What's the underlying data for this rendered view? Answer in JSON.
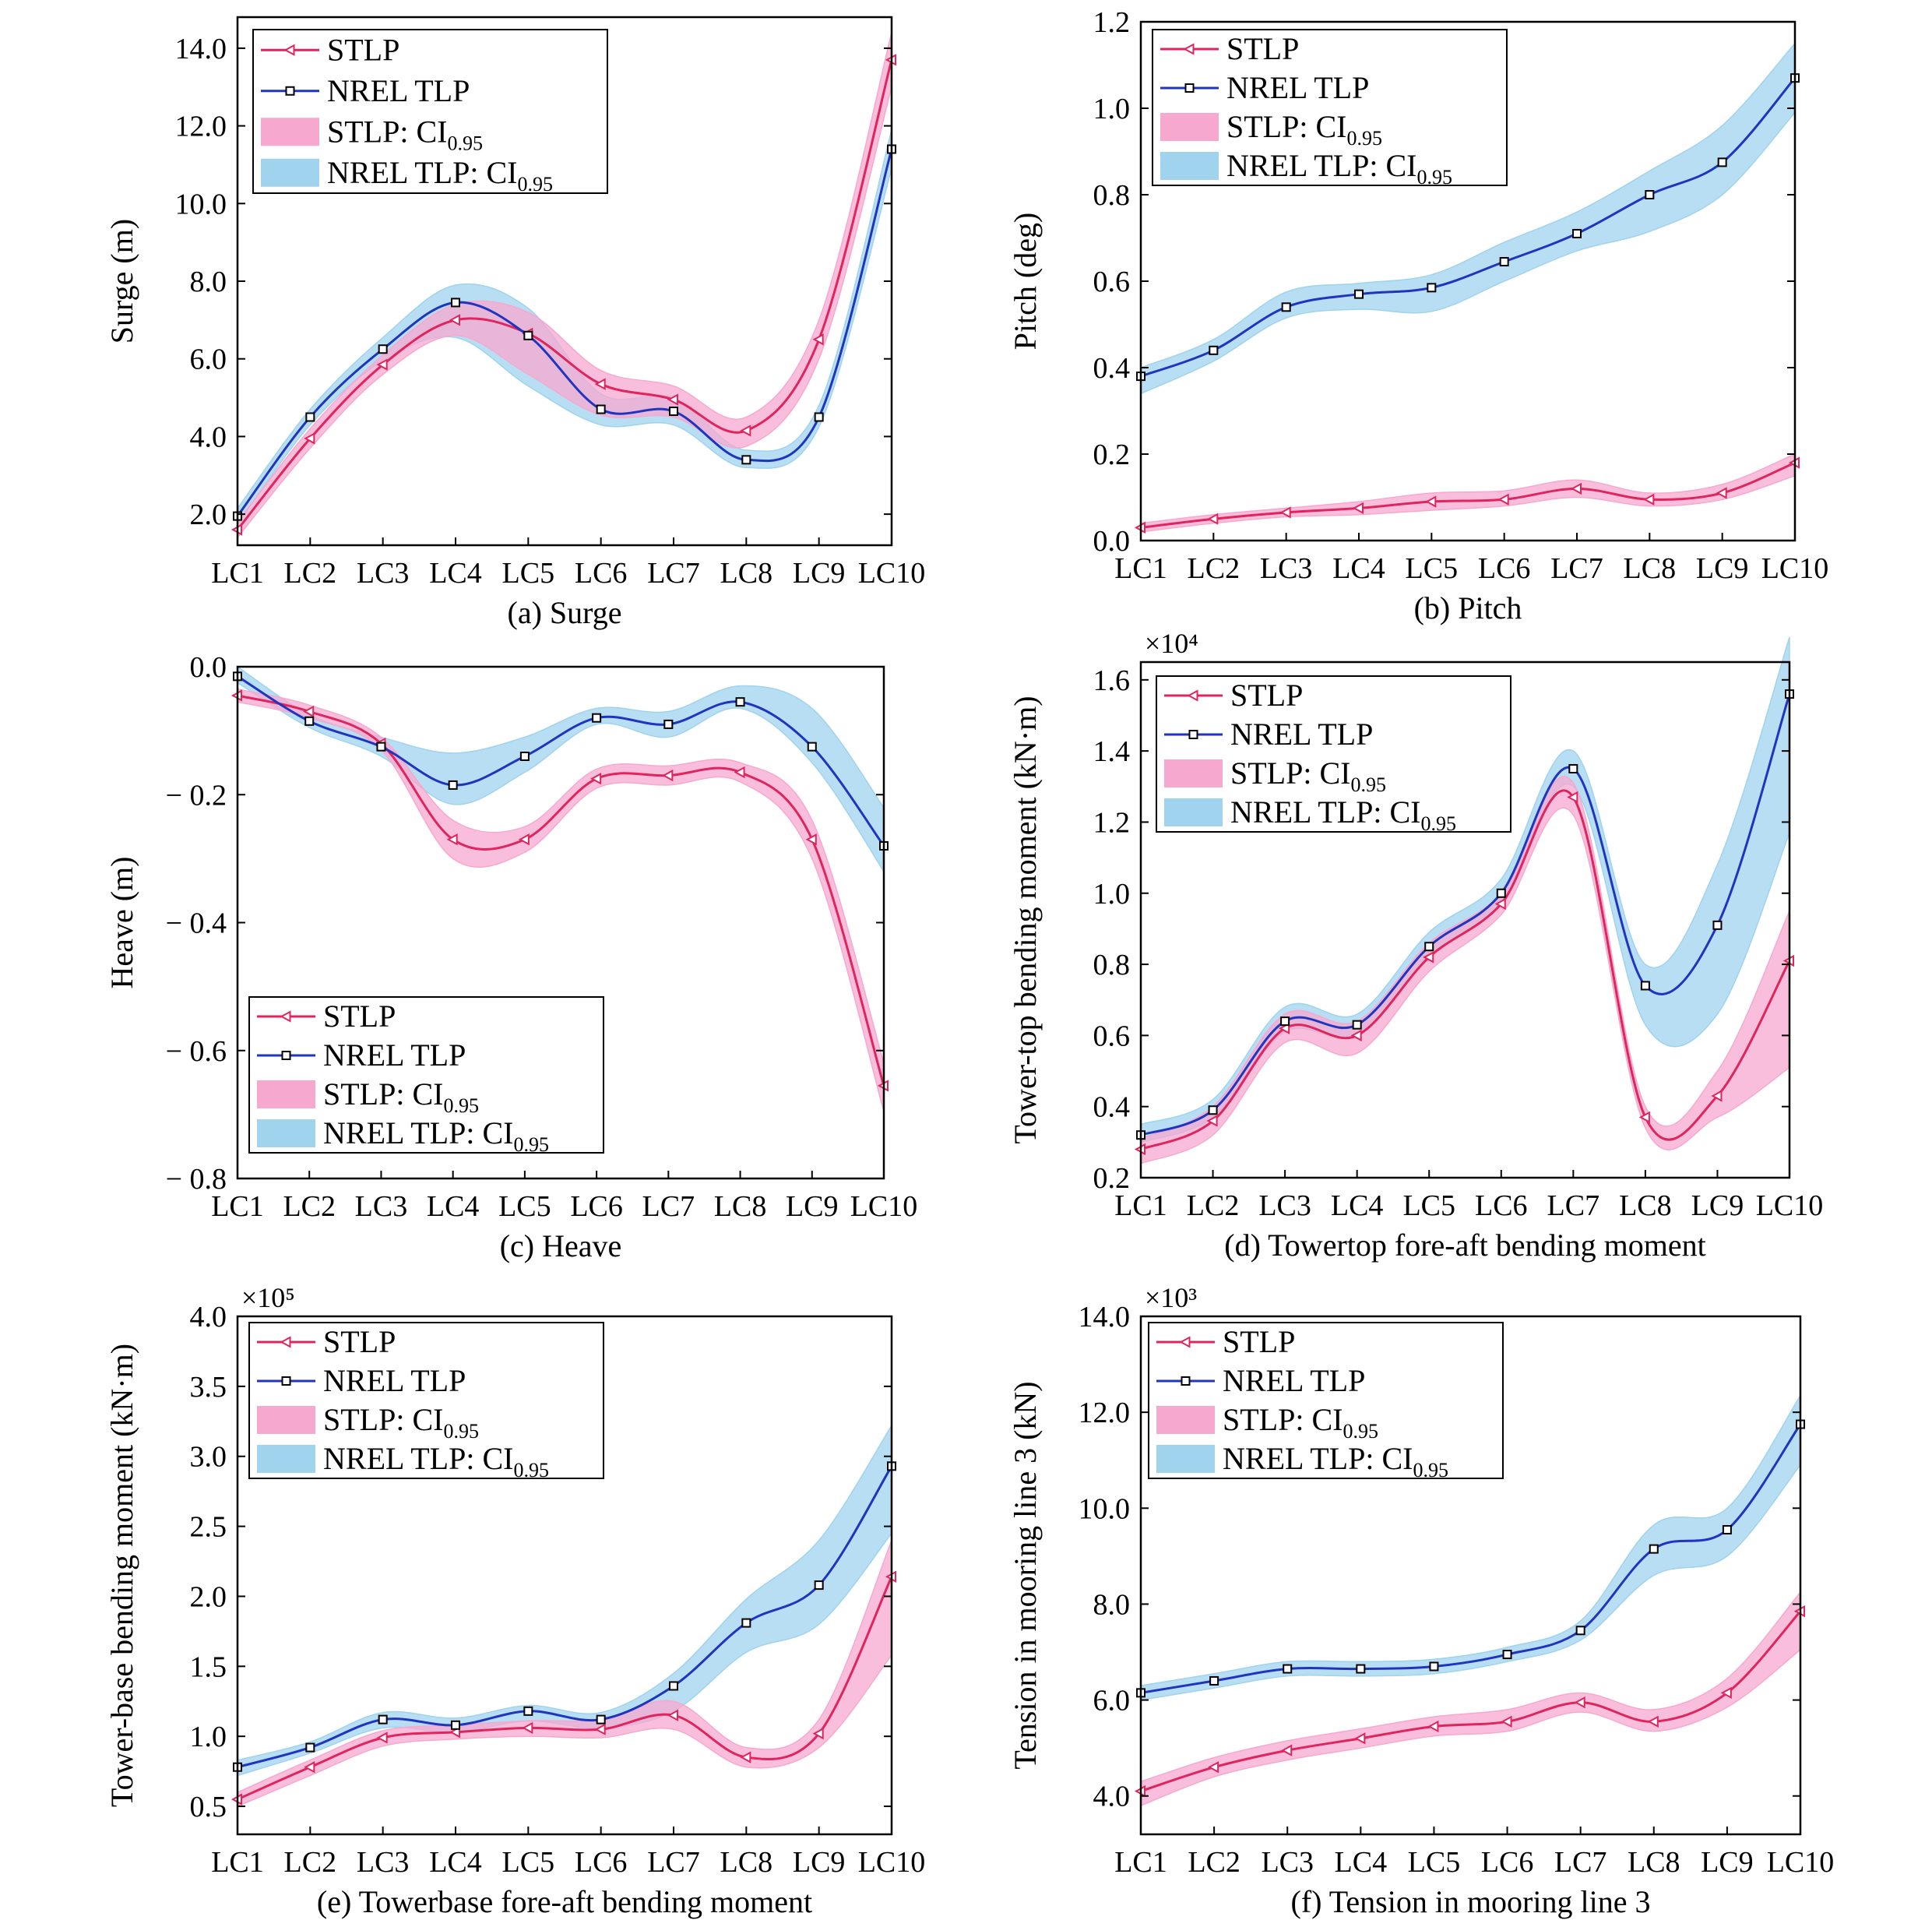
{
  "categories": [
    "LC1",
    "LC2",
    "LC3",
    "LC4",
    "LC5",
    "LC6",
    "LC7",
    "LC8",
    "LC9",
    "LC10"
  ],
  "colors": {
    "stlp_line": "#e0245e",
    "nrel_line": "#1f35c0",
    "stlp_band": "#f7a8cf",
    "nrel_band": "#9fd3ee"
  },
  "legend_labels": {
    "stlp": "STLP",
    "nrel": "NREL TLP",
    "stlp_ci_prefix": "STLP: CI",
    "nrel_ci_prefix": "NREL TLP: CI",
    "ci_subscript": "0.95"
  },
  "chart_data": [
    {
      "id": "a",
      "type": "line",
      "caption": "(a) Surge",
      "ylabel": "Surge (m)",
      "ylim": [
        1.2,
        14.8
      ],
      "ticks": [
        2.0,
        4.0,
        6.0,
        8.0,
        10.0,
        12.0,
        14.0
      ],
      "tick_labels": [
        "2.0",
        "4.0",
        "6.0",
        "8.0",
        "10.0",
        "12.0",
        "14.0"
      ],
      "exponent_label": "",
      "legend_position": "top-left",
      "series": [
        {
          "name": "STLP",
          "values": [
            1.6,
            3.95,
            5.85,
            7.0,
            6.65,
            5.35,
            4.95,
            4.15,
            6.5,
            13.7
          ],
          "ci_low": [
            1.4,
            3.7,
            5.6,
            6.6,
            5.6,
            4.55,
            4.5,
            3.75,
            6.0,
            13.0
          ],
          "ci_high": [
            1.8,
            4.2,
            6.1,
            7.4,
            7.2,
            5.7,
            5.3,
            4.5,
            7.0,
            14.4
          ]
        },
        {
          "name": "NREL TLP",
          "values": [
            1.95,
            4.5,
            6.25,
            7.45,
            6.6,
            4.7,
            4.65,
            3.4,
            4.5,
            11.4
          ],
          "ci_low": [
            1.75,
            4.3,
            5.95,
            6.55,
            5.3,
            4.3,
            4.3,
            3.2,
            4.25,
            10.9
          ],
          "ci_high": [
            2.15,
            4.7,
            6.55,
            7.9,
            7.3,
            5.1,
            5.0,
            3.65,
            4.8,
            11.9
          ]
        }
      ]
    },
    {
      "id": "b",
      "type": "line",
      "caption": "(b) Pitch",
      "ylabel": "Pitch (deg)",
      "ylim": [
        0.0,
        1.2
      ],
      "ticks": [
        0.0,
        0.2,
        0.4,
        0.6,
        0.8,
        1.0,
        1.2
      ],
      "tick_labels": [
        "0.0",
        "0.2",
        "0.4",
        "0.6",
        "0.8",
        "1.0",
        "1.2"
      ],
      "exponent_label": "",
      "legend_position": "top-left",
      "series": [
        {
          "name": "STLP",
          "values": [
            0.03,
            0.05,
            0.065,
            0.075,
            0.09,
            0.095,
            0.12,
            0.095,
            0.11,
            0.18
          ],
          "ci_low": [
            0.02,
            0.04,
            0.055,
            0.06,
            0.07,
            0.08,
            0.1,
            0.08,
            0.095,
            0.15
          ],
          "ci_high": [
            0.04,
            0.06,
            0.075,
            0.09,
            0.11,
            0.115,
            0.14,
            0.11,
            0.13,
            0.2
          ]
        },
        {
          "name": "NREL TLP",
          "values": [
            0.38,
            0.44,
            0.54,
            0.57,
            0.585,
            0.645,
            0.71,
            0.8,
            0.875,
            1.07
          ],
          "ci_low": [
            0.34,
            0.415,
            0.515,
            0.535,
            0.53,
            0.6,
            0.67,
            0.715,
            0.8,
            0.99
          ],
          "ci_high": [
            0.4,
            0.465,
            0.575,
            0.595,
            0.615,
            0.69,
            0.76,
            0.855,
            0.96,
            1.15
          ]
        }
      ]
    },
    {
      "id": "c",
      "type": "line",
      "caption": "(c) Heave",
      "ylabel": "Heave (m)",
      "ylim": [
        -0.8,
        0.0
      ],
      "ticks": [
        0.0,
        -0.2,
        -0.4,
        -0.6,
        -0.8
      ],
      "tick_labels": [
        "0.0",
        "− 0.2",
        "− 0.4",
        "− 0.6",
        "− 0.8"
      ],
      "exponent_label": "",
      "legend_position": "bottom-left",
      "series": [
        {
          "name": "STLP",
          "values": [
            -0.045,
            -0.07,
            -0.12,
            -0.27,
            -0.27,
            -0.175,
            -0.17,
            -0.165,
            -0.27,
            -0.655
          ],
          "ci_low": [
            -0.055,
            -0.08,
            -0.13,
            -0.3,
            -0.29,
            -0.19,
            -0.185,
            -0.18,
            -0.3,
            -0.695
          ],
          "ci_high": [
            -0.035,
            -0.06,
            -0.11,
            -0.24,
            -0.25,
            -0.16,
            -0.155,
            -0.15,
            -0.24,
            -0.62
          ]
        },
        {
          "name": "NREL TLP",
          "values": [
            -0.015,
            -0.085,
            -0.125,
            -0.185,
            -0.14,
            -0.08,
            -0.09,
            -0.055,
            -0.125,
            -0.28
          ],
          "ci_low": [
            -0.025,
            -0.095,
            -0.14,
            -0.215,
            -0.165,
            -0.09,
            -0.11,
            -0.065,
            -0.15,
            -0.32
          ],
          "ci_high": [
            0.0,
            -0.075,
            -0.11,
            -0.135,
            -0.11,
            -0.065,
            -0.07,
            -0.03,
            -0.065,
            -0.22
          ]
        }
      ]
    },
    {
      "id": "d",
      "type": "line",
      "caption": "(d) Towertop fore-aft bending moment",
      "ylabel": "Tower-top bending moment (kN·m)",
      "ylim": [
        0.2,
        1.65
      ],
      "ticks": [
        0.2,
        0.4,
        0.6,
        0.8,
        1.0,
        1.2,
        1.4,
        1.6
      ],
      "tick_labels": [
        "0.2",
        "0.4",
        "0.6",
        "0.8",
        "1.0",
        "1.2",
        "1.4",
        "1.6"
      ],
      "exponent_label": "×10⁴",
      "legend_position": "top-left",
      "series": [
        {
          "name": "STLP",
          "values": [
            0.28,
            0.36,
            0.62,
            0.6,
            0.82,
            0.97,
            1.27,
            0.37,
            0.43,
            0.81
          ],
          "ci_low": [
            0.24,
            0.32,
            0.58,
            0.55,
            0.78,
            0.94,
            1.22,
            0.34,
            0.37,
            0.51
          ],
          "ci_high": [
            0.31,
            0.4,
            0.66,
            0.64,
            0.86,
            1.0,
            1.31,
            0.4,
            0.5,
            0.95
          ]
        },
        {
          "name": "NREL TLP",
          "values": [
            0.32,
            0.39,
            0.64,
            0.63,
            0.85,
            1.0,
            1.35,
            0.74,
            0.91,
            1.56
          ],
          "ci_low": [
            0.3,
            0.37,
            0.61,
            0.6,
            0.82,
            0.97,
            1.3,
            0.63,
            0.66,
            1.17
          ],
          "ci_high": [
            0.35,
            0.42,
            0.68,
            0.66,
            0.89,
            1.04,
            1.4,
            0.8,
            1.08,
            1.72
          ]
        }
      ]
    },
    {
      "id": "e",
      "type": "line",
      "caption": "(e) Towerbase fore-aft bending moment",
      "ylabel": "Tower-base bending moment (kN·m)",
      "ylim": [
        0.3,
        4.0
      ],
      "ticks": [
        0.5,
        1.0,
        1.5,
        2.0,
        2.5,
        3.0,
        3.5,
        4.0
      ],
      "tick_labels": [
        "0.5",
        "1.0",
        "1.5",
        "2.0",
        "2.5",
        "3.0",
        "3.5",
        "4.0"
      ],
      "exponent_label": "×10⁵",
      "legend_position": "top-left",
      "series": [
        {
          "name": "STLP",
          "values": [
            0.55,
            0.78,
            0.99,
            1.03,
            1.06,
            1.05,
            1.15,
            0.85,
            1.02,
            2.14
          ],
          "ci_low": [
            0.5,
            0.72,
            0.93,
            0.98,
            1.0,
            0.99,
            1.05,
            0.78,
            0.92,
            1.58
          ],
          "ci_high": [
            0.6,
            0.83,
            1.04,
            1.08,
            1.11,
            1.12,
            1.25,
            0.92,
            1.12,
            2.4
          ]
        },
        {
          "name": "NREL TLP",
          "values": [
            0.78,
            0.92,
            1.12,
            1.08,
            1.18,
            1.12,
            1.36,
            1.81,
            2.08,
            2.93
          ],
          "ci_low": [
            0.72,
            0.88,
            1.06,
            1.03,
            1.11,
            1.06,
            1.18,
            1.6,
            1.8,
            2.45
          ],
          "ci_high": [
            0.83,
            0.96,
            1.17,
            1.13,
            1.22,
            1.17,
            1.45,
            1.98,
            2.4,
            3.22
          ]
        }
      ]
    },
    {
      "id": "f",
      "type": "line",
      "caption": "(f) Tension in mooring line 3",
      "ylabel": "Tension in mooring line 3 (kN)",
      "ylim": [
        3.2,
        14.0
      ],
      "ticks": [
        4.0,
        6.0,
        8.0,
        10.0,
        12.0,
        14.0
      ],
      "tick_labels": [
        "4.0",
        "6.0",
        "8.0",
        "10.0",
        "12.0",
        "14.0"
      ],
      "exponent_label": "×10³",
      "legend_position": "top-left",
      "series": [
        {
          "name": "STLP",
          "values": [
            4.1,
            4.6,
            4.95,
            5.2,
            5.45,
            5.55,
            5.95,
            5.55,
            6.15,
            7.85
          ],
          "ci_low": [
            3.8,
            4.4,
            4.75,
            5.0,
            5.25,
            5.35,
            5.75,
            5.35,
            5.85,
            7.05
          ],
          "ci_high": [
            4.3,
            4.8,
            5.15,
            5.4,
            5.65,
            5.8,
            6.15,
            5.8,
            6.45,
            8.25
          ]
        },
        {
          "name": "NREL TLP",
          "values": [
            6.15,
            6.4,
            6.65,
            6.65,
            6.7,
            6.95,
            7.45,
            9.15,
            9.55,
            11.75
          ],
          "ci_low": [
            6.0,
            6.25,
            6.5,
            6.5,
            6.55,
            6.8,
            7.25,
            8.6,
            9.0,
            10.9
          ],
          "ci_high": [
            6.3,
            6.55,
            6.8,
            6.8,
            6.85,
            7.1,
            7.65,
            9.65,
            10.0,
            12.35
          ]
        }
      ]
    }
  ]
}
